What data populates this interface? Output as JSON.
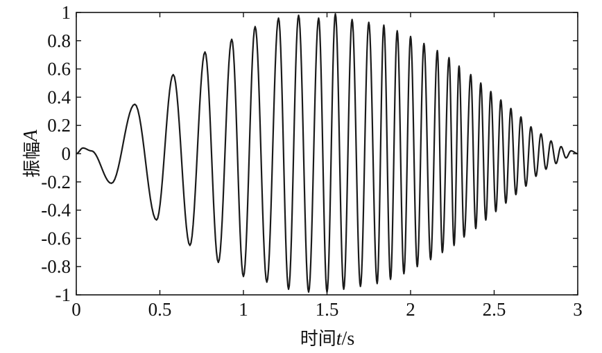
{
  "chart_data": {
    "type": "line",
    "title": "",
    "xlabel": {
      "prefix": "时间",
      "variable": "t",
      "unit": "/s"
    },
    "ylabel": {
      "prefix": "振幅",
      "variable": "A"
    },
    "xlim": [
      0,
      3
    ],
    "ylim": [
      -1,
      1
    ],
    "xticks": [
      0,
      0.5,
      1,
      1.5,
      2,
      2.5,
      3
    ],
    "xtick_labels": [
      "0",
      "0.5",
      "1",
      "1.5",
      "2",
      "2.5",
      "3"
    ],
    "yticks": [
      1,
      0.8,
      0.6,
      0.4,
      0.2,
      0,
      -0.2,
      -0.4,
      -0.6,
      -0.8,
      -1
    ],
    "ytick_labels": [
      "1",
      "0.8",
      "0.6",
      "0.4",
      "0.2",
      "0",
      "-0.2",
      "-0.4",
      "-0.6",
      "-0.8",
      "-1"
    ],
    "grid": false,
    "line_color": "#1a1a1a",
    "series": [
      {
        "points": [
          [
            0.0,
            0.0
          ],
          [
            0.04,
            0.04
          ],
          [
            0.09,
            0.02
          ],
          [
            0.21,
            -0.21
          ],
          [
            0.35,
            0.35
          ],
          [
            0.48,
            -0.47
          ],
          [
            0.58,
            0.56
          ],
          [
            0.68,
            -0.65
          ],
          [
            0.77,
            0.72
          ],
          [
            0.85,
            -0.77
          ],
          [
            0.93,
            0.81
          ],
          [
            1.0,
            -0.87
          ],
          [
            1.07,
            0.9
          ],
          [
            1.14,
            -0.91
          ],
          [
            1.21,
            0.96
          ],
          [
            1.27,
            -0.96
          ],
          [
            1.33,
            0.98
          ],
          [
            1.39,
            -0.98
          ],
          [
            1.45,
            0.96
          ],
          [
            1.5,
            -0.98
          ],
          [
            1.55,
            0.99
          ],
          [
            1.6,
            -0.96
          ],
          [
            1.65,
            0.95
          ],
          [
            1.7,
            -0.94
          ],
          [
            1.75,
            0.93
          ],
          [
            1.8,
            -0.92
          ],
          [
            1.84,
            0.91
          ],
          [
            1.88,
            -0.89
          ],
          [
            1.92,
            0.87
          ],
          [
            1.96,
            -0.85
          ],
          [
            2.0,
            0.83
          ],
          [
            2.04,
            -0.8
          ],
          [
            2.08,
            0.78
          ],
          [
            2.12,
            -0.75
          ],
          [
            2.16,
            0.73
          ],
          [
            2.19,
            -0.7
          ],
          [
            2.23,
            0.68
          ],
          [
            2.26,
            -0.65
          ],
          [
            2.29,
            0.62
          ],
          [
            2.32,
            -0.59
          ],
          [
            2.36,
            0.56
          ],
          [
            2.39,
            -0.53
          ],
          [
            2.42,
            0.5
          ],
          [
            2.45,
            -0.47
          ],
          [
            2.48,
            0.44
          ],
          [
            2.51,
            -0.41
          ],
          [
            2.54,
            0.38
          ],
          [
            2.57,
            -0.35
          ],
          [
            2.6,
            0.32
          ],
          [
            2.63,
            -0.29
          ],
          [
            2.66,
            0.26
          ],
          [
            2.69,
            -0.23
          ],
          [
            2.72,
            0.19
          ],
          [
            2.75,
            -0.16
          ],
          [
            2.78,
            0.14
          ],
          [
            2.81,
            -0.11
          ],
          [
            2.84,
            0.09
          ],
          [
            2.87,
            -0.07
          ],
          [
            2.9,
            0.05
          ],
          [
            2.93,
            -0.03
          ],
          [
            2.96,
            0.02
          ],
          [
            3.0,
            0.0
          ]
        ]
      }
    ]
  }
}
